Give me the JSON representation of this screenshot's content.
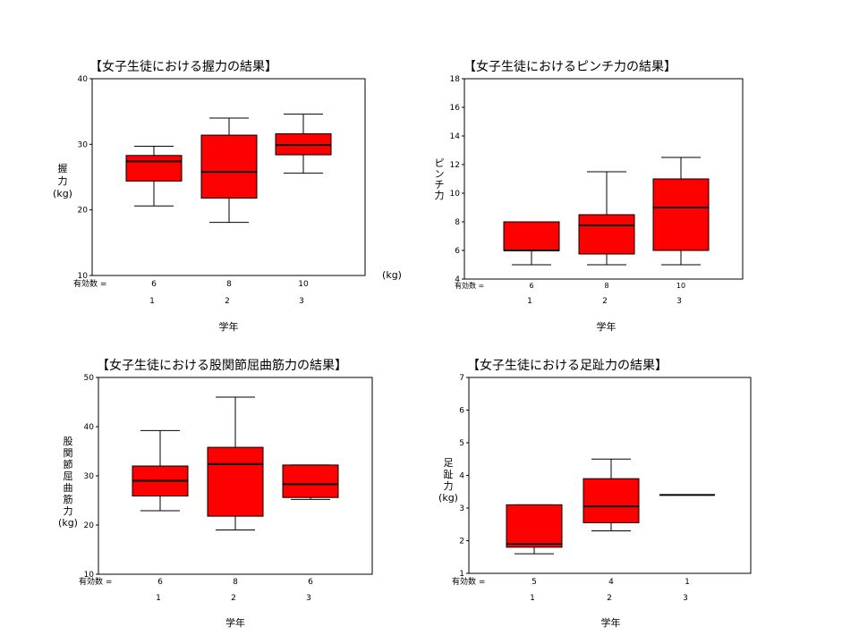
{
  "colors": {
    "box_fill": "#ff0000",
    "stroke": "#000000",
    "background": "#ffffff"
  },
  "charts": [
    {
      "type": "boxplot",
      "title": "【女子生徒における握力の結果】",
      "ylabel": [
        "握",
        "力",
        "(kg)"
      ],
      "ylim": [
        10,
        40
      ],
      "yticks": [
        "10",
        "20",
        "30",
        "40"
      ],
      "side_unit": "(kg)",
      "n_label": "有効数 =",
      "n_values": [
        "6",
        "8",
        "10"
      ],
      "categories": [
        "1",
        "2",
        "3"
      ],
      "xlabel": "学年"
    },
    {
      "type": "boxplot",
      "title": "【女子生徒におけるピンチ力の結果】",
      "ylabel": [
        "ピ",
        "ン",
        "チ",
        "力"
      ],
      "ylim": [
        4,
        18
      ],
      "yticks": [
        "4",
        "6",
        "8",
        "10",
        "12",
        "14",
        "16",
        "18"
      ],
      "n_label": "有効数 =",
      "n_values": [
        "6",
        "8",
        "10"
      ],
      "categories": [
        "1",
        "2",
        "3"
      ],
      "xlabel": "学年"
    },
    {
      "type": "boxplot",
      "title": "【女子生徒における股関節屈曲筋力の結果】",
      "ylabel": [
        "股",
        "関",
        "節",
        "屈",
        "曲",
        "筋",
        "力",
        "(kg)"
      ],
      "ylim": [
        10,
        50
      ],
      "yticks": [
        "10",
        "20",
        "30",
        "40",
        "50"
      ],
      "n_label": "有効数 =",
      "n_values": [
        "6",
        "8",
        "6"
      ],
      "categories": [
        "1",
        "2",
        "3"
      ],
      "xlabel": "学年"
    },
    {
      "type": "boxplot",
      "title": "【女子生徒における足趾力の結果】",
      "ylabel": [
        "足",
        "趾",
        "力",
        "(kg)"
      ],
      "ylim": [
        1,
        7
      ],
      "yticks": [
        "1",
        "2",
        "3",
        "4",
        "5",
        "6",
        "7"
      ],
      "n_label": "有効数 =",
      "n_values": [
        "5",
        "4",
        "1"
      ],
      "categories": [
        "1",
        "2",
        "3"
      ],
      "xlabel": "学年"
    }
  ],
  "chart_data": [
    {
      "type": "boxplot",
      "title": "【女子生徒における握力の結果】",
      "categories": [
        "1",
        "2",
        "3"
      ],
      "ylim": [
        10,
        40
      ],
      "boxes": [
        {
          "whisker_low": 20.6,
          "q1": 24.4,
          "median": 27.4,
          "q3": 28.3,
          "whisker_high": 29.7
        },
        {
          "whisker_low": 18.1,
          "q1": 21.8,
          "median": 25.8,
          "q3": 31.4,
          "whisker_high": 34.0
        },
        {
          "whisker_low": 25.6,
          "q1": 28.4,
          "median": 29.9,
          "q3": 31.6,
          "whisker_high": 34.6
        }
      ]
    },
    {
      "type": "boxplot",
      "title": "【女子生徒におけるピンチ力の結果】",
      "categories": [
        "1",
        "2",
        "3"
      ],
      "ylim": [
        4,
        18
      ],
      "boxes": [
        {
          "whisker_low": 5.0,
          "q1": 6.0,
          "median": 6.0,
          "q3": 8.0,
          "whisker_high": 8.0
        },
        {
          "whisker_low": 5.0,
          "q1": 5.75,
          "median": 7.75,
          "q3": 8.5,
          "whisker_high": 11.5
        },
        {
          "whisker_low": 5.0,
          "q1": 6.0,
          "median": 9.0,
          "q3": 11.0,
          "whisker_high": 12.5
        }
      ]
    },
    {
      "type": "boxplot",
      "title": "【女子生徒における股関節屈曲筋力の結果】",
      "categories": [
        "1",
        "2",
        "3"
      ],
      "ylim": [
        10,
        50
      ],
      "boxes": [
        {
          "whisker_low": 22.9,
          "q1": 25.9,
          "median": 29.0,
          "q3": 32.0,
          "whisker_high": 39.2
        },
        {
          "whisker_low": 19.0,
          "q1": 21.8,
          "median": 32.4,
          "q3": 35.8,
          "whisker_high": 46.0
        },
        {
          "whisker_low": 25.2,
          "q1": 25.6,
          "median": 28.3,
          "q3": 32.2,
          "whisker_high": 32.2
        }
      ]
    },
    {
      "type": "boxplot",
      "title": "【女子生徒における足趾力の結果】",
      "categories": [
        "1",
        "2",
        "3"
      ],
      "ylim": [
        1,
        7
      ],
      "boxes": [
        {
          "whisker_low": 1.6,
          "q1": 1.8,
          "median": 1.9,
          "q3": 3.1,
          "whisker_high": 3.1
        },
        {
          "whisker_low": 2.3,
          "q1": 2.55,
          "median": 3.05,
          "q3": 3.9,
          "whisker_high": 4.5
        },
        {
          "whisker_low": 3.4,
          "q1": 3.4,
          "median": 3.4,
          "q3": 3.4,
          "whisker_high": 3.4
        }
      ]
    }
  ]
}
